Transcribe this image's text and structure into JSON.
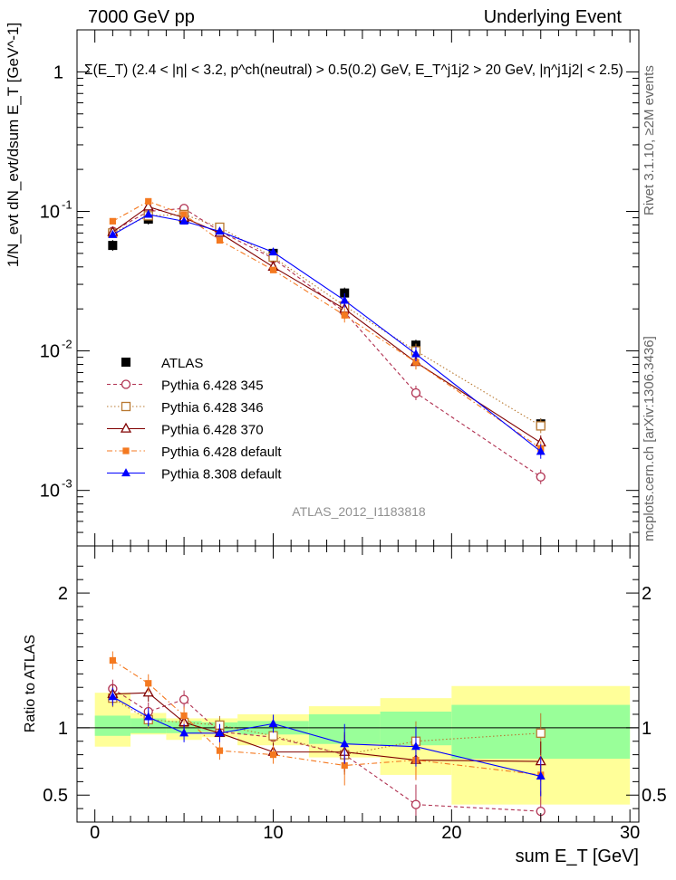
{
  "header": {
    "energy": "7000 GeV pp",
    "process": "Underlying Event"
  },
  "side_labels": {
    "rivet": "Rivet 3.1.10, ≥2M events",
    "site": "mcplots.cern.ch [arXiv:1306.3436]"
  },
  "chart_data": [
    {
      "type": "line",
      "panel": "main",
      "title": "Σ(E_T) (2.4 < |η| < 3.2, p^ch(neutral) > 0.5(0.2) GeV, E_T^j1j2 > 20 GeV, |η^j1j2| < 2.5)",
      "ylabel": "1/N_evt dN_evt/dsum E_T [GeV^-1]",
      "xlabel": "sum E_T [GeV]",
      "yscale": "log",
      "ylim": [
        0.0004,
        2
      ],
      "xlim": [
        -1,
        30.5
      ],
      "y_ticks": [
        "10^-3",
        "10^-2",
        "10^-1",
        "1"
      ],
      "analysis_label": "ATLAS_2012_I1183818",
      "legend_position": "bottom-left",
      "x": [
        1,
        3,
        5,
        7,
        10,
        14,
        18,
        25
      ],
      "series": [
        {
          "name": "ATLAS",
          "color": "#000000",
          "marker": "filled-square",
          "line": "none",
          "values": [
            0.057,
            0.088,
            0.088,
            0.075,
            0.05,
            0.026,
            0.011,
            0.003
          ]
        },
        {
          "name": "Pythia 6.428 345",
          "color": "#b03050",
          "marker": "open-circle",
          "line": "dashed",
          "values": [
            0.072,
            0.1,
            0.105,
            0.072,
            0.046,
            0.019,
            0.005,
            0.00125
          ]
        },
        {
          "name": "Pythia 6.428 346",
          "color": "#b87830",
          "marker": "open-square",
          "line": "dotted",
          "values": [
            0.07,
            0.093,
            0.095,
            0.077,
            0.047,
            0.021,
            0.01,
            0.0029
          ]
        },
        {
          "name": "Pythia 6.428 370",
          "color": "#800000",
          "marker": "open-triangle",
          "line": "solid",
          "values": [
            0.071,
            0.108,
            0.09,
            0.07,
            0.04,
            0.02,
            0.0083,
            0.0022
          ]
        },
        {
          "name": "Pythia 6.428 default",
          "color": "#f47920",
          "marker": "filled-square-small",
          "line": "dashdot",
          "values": [
            0.085,
            0.118,
            0.095,
            0.062,
            0.038,
            0.018,
            0.0083,
            0.002
          ]
        },
        {
          "name": "Pythia 8.308 default",
          "color": "#0000ff",
          "marker": "filled-triangle",
          "line": "solid",
          "values": [
            0.068,
            0.095,
            0.085,
            0.072,
            0.051,
            0.023,
            0.0095,
            0.0019
          ]
        }
      ]
    },
    {
      "type": "line",
      "panel": "ratio",
      "ylabel": "Ratio to ATLAS",
      "xlabel": "sum E_T [GeV]",
      "ylim": [
        0.3,
        2.35
      ],
      "xlim": [
        -1,
        30.5
      ],
      "y_ticks": [
        0.5,
        1,
        2
      ],
      "x_ticks": [
        0,
        10,
        20,
        30
      ],
      "bands": {
        "bin_edges": [
          0,
          2,
          4,
          6,
          8,
          12,
          16,
          20,
          30
        ],
        "inner_lo": [
          0.94,
          0.96,
          0.96,
          0.97,
          0.95,
          0.88,
          0.87,
          0.77
        ],
        "inner_hi": [
          1.09,
          1.07,
          1.05,
          1.04,
          1.05,
          1.1,
          1.12,
          1.17
        ],
        "outer_lo": [
          0.86,
          0.95,
          0.91,
          0.93,
          0.87,
          0.78,
          0.65,
          0.43
        ],
        "outer_hi": [
          1.26,
          1.11,
          1.07,
          1.07,
          1.1,
          1.16,
          1.22,
          1.31
        ],
        "inner_color": "#99ff99",
        "outer_color": "#ffff99"
      },
      "x": [
        1,
        3,
        5,
        7,
        10,
        14,
        18,
        25
      ],
      "series": [
        {
          "name": "Pythia 6.428 345",
          "values": [
            1.29,
            1.12,
            1.21,
            0.97,
            0.93,
            0.8,
            0.43,
            0.38
          ]
        },
        {
          "name": "Pythia 6.428 346",
          "values": [
            1.22,
            1.06,
            1.04,
            1.02,
            0.94,
            0.8,
            0.9,
            0.96
          ]
        },
        {
          "name": "Pythia 6.428 370",
          "values": [
            1.25,
            1.26,
            1.04,
            0.96,
            0.82,
            0.82,
            0.76,
            0.75
          ]
        },
        {
          "name": "Pythia 6.428 default",
          "values": [
            1.5,
            1.33,
            1.09,
            0.83,
            0.8,
            0.72,
            0.76,
            0.65
          ]
        },
        {
          "name": "Pythia 8.308 default",
          "values": [
            1.23,
            1.08,
            0.96,
            0.96,
            1.03,
            0.88,
            0.86,
            0.64
          ]
        }
      ]
    }
  ]
}
